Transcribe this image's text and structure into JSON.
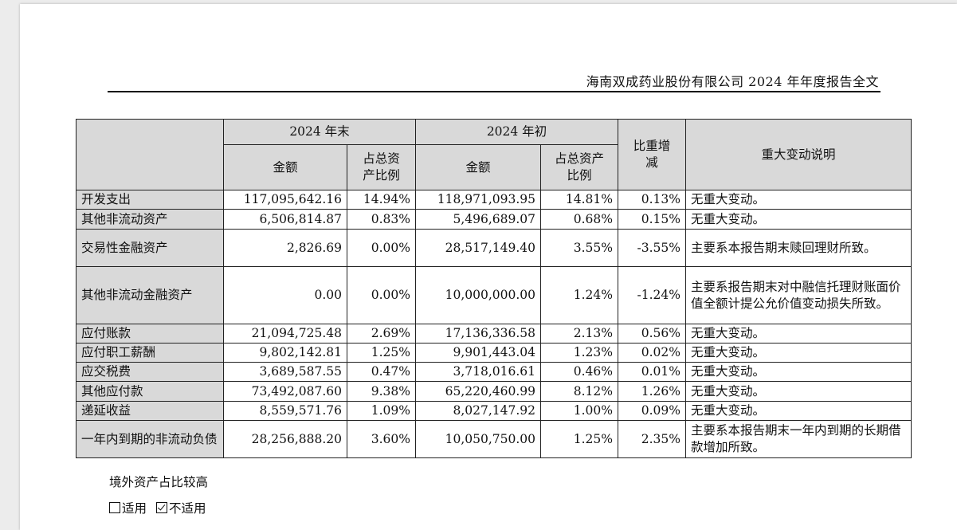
{
  "header": {
    "title": "海南双成药业股份有限公司 2024 年年度报告全文"
  },
  "table": {
    "col_groups": {
      "end": "2024 年末",
      "start": "2024 年初"
    },
    "sub_headers": {
      "amount_end": "金额",
      "ratio_end": "占总资产比例",
      "amount_start": "金额",
      "ratio_start": "占总资产比例",
      "change": "比重增减",
      "note": "重大变动说明"
    },
    "rows": [
      {
        "label": "开发支出",
        "amount_end": "117,095,642.16",
        "ratio_end": "14.94%",
        "amount_start": "118,971,093.95",
        "ratio_start": "14.81%",
        "change": "0.13%",
        "note": "无重大变动。"
      },
      {
        "label": "其他非流动资产",
        "amount_end": "6,506,814.87",
        "ratio_end": "0.83%",
        "amount_start": "5,496,689.07",
        "ratio_start": "0.68%",
        "change": "0.15%",
        "note": "无重大变动。"
      },
      {
        "label": "交易性金融资产",
        "amount_end": "2,826.69",
        "ratio_end": "0.00%",
        "amount_start": "28,517,149.40",
        "ratio_start": "3.55%",
        "change": "-3.55%",
        "note": "主要系本报告期末赎回理财所致。"
      },
      {
        "label": "其他非流动金融资产",
        "amount_end": "0.00",
        "ratio_end": "0.00%",
        "amount_start": "10,000,000.00",
        "ratio_start": "1.24%",
        "change": "-1.24%",
        "note": "主要系报告期末对中融信托理财账面价值全额计提公允价值变动损失所致。"
      },
      {
        "label": "应付账款",
        "amount_end": "21,094,725.48",
        "ratio_end": "2.69%",
        "amount_start": "17,136,336.58",
        "ratio_start": "2.13%",
        "change": "0.56%",
        "note": "无重大变动。"
      },
      {
        "label": "应付职工薪酬",
        "amount_end": "9,802,142.81",
        "ratio_end": "1.25%",
        "amount_start": "9,901,443.04",
        "ratio_start": "1.23%",
        "change": "0.02%",
        "note": "无重大变动。"
      },
      {
        "label": "应交税费",
        "amount_end": "3,689,587.55",
        "ratio_end": "0.47%",
        "amount_start": "3,718,016.61",
        "ratio_start": "0.46%",
        "change": "0.01%",
        "note": "无重大变动。"
      },
      {
        "label": "其他应付款",
        "amount_end": "73,492,087.60",
        "ratio_end": "9.38%",
        "amount_start": "65,220,460.99",
        "ratio_start": "8.12%",
        "change": "1.26%",
        "note": "无重大变动。"
      },
      {
        "label": "递延收益",
        "amount_end": "8,559,571.76",
        "ratio_end": "1.09%",
        "amount_start": "8,027,147.92",
        "ratio_start": "1.00%",
        "change": "0.09%",
        "note": "无重大变动。"
      },
      {
        "label": "一年内到期的非流动负债",
        "amount_end": "28,256,888.20",
        "ratio_end": "3.60%",
        "amount_start": "10,050,750.00",
        "ratio_start": "1.25%",
        "change": "2.35%",
        "note": "主要系本报告期末一年内到期的长期借款增加所致。"
      }
    ]
  },
  "footer": {
    "heading": "境外资产占比较高",
    "option_applicable": "适用",
    "option_not_applicable": "不适用",
    "selected": "不适用"
  }
}
